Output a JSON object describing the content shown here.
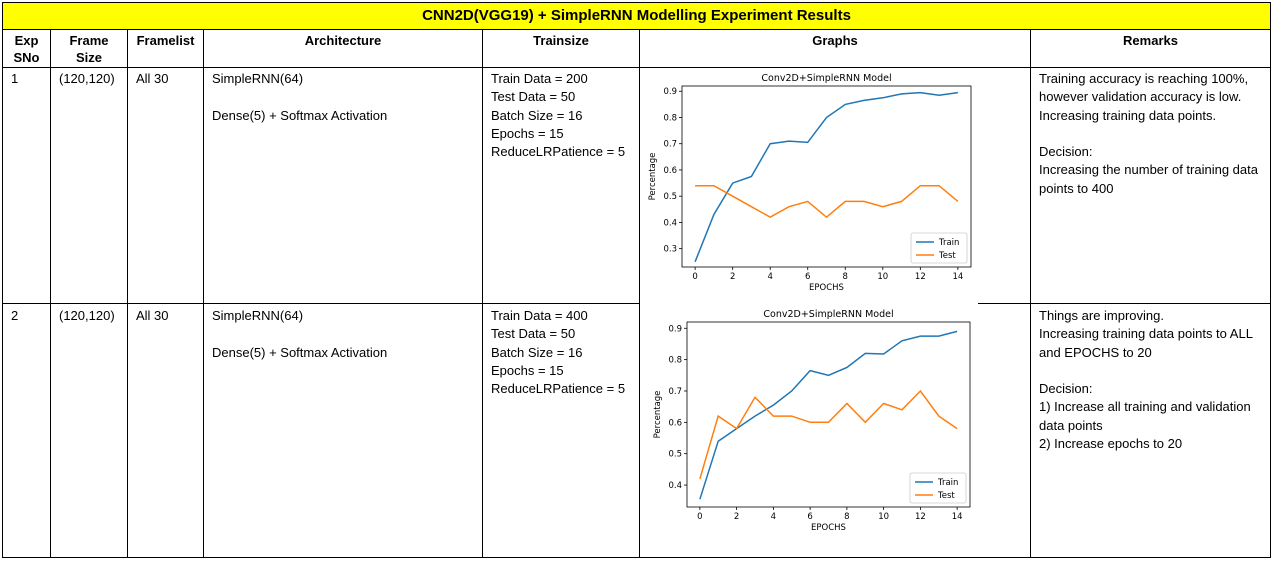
{
  "title": "CNN2D(VGG19) + SimpleRNN Modelling Experiment Results",
  "headers": {
    "exp": "Exp\nSNo",
    "frame": "Frame\nSize",
    "framelist": "Framelist",
    "arch": "Architecture",
    "trainsize": "Trainsize",
    "graphs": "Graphs",
    "remarks": "Remarks"
  },
  "rows": [
    {
      "exp": "1",
      "frame": "(120,120)",
      "framelist": "All 30",
      "arch": "SimpleRNN(64)\n\nDense(5) + Softmax Activation",
      "trainsize": "Train Data = 200\nTest Data = 50\nBatch Size = 16\nEpochs = 15\nReduceLRPatience = 5",
      "remarks": "Training accuracy is reaching 100%, however validation accuracy is low. Increasing training data points.\n\nDecision:\nIncreasing the number of training data points to 400"
    },
    {
      "exp": "2",
      "frame": "(120,120)",
      "framelist": "All 30",
      "arch": "SimpleRNN(64)\n\nDense(5) + Softmax Activation",
      "trainsize": "Train Data = 400\nTest Data = 50\nBatch Size = 16\nEpochs = 15\nReduceLRPatience = 5",
      "remarks": "Things are improving.\nIncreasing training data points to ALL and EPOCHS to 20\n\nDecision:\n1) Increase all training and validation data points\n2) Increase epochs to 20"
    }
  ],
  "chart_data": [
    {
      "type": "line",
      "title": "Conv2D+SimpleRNN Model",
      "xlabel": "EPOCHS",
      "ylabel": "Percentage",
      "x": [
        0,
        1,
        2,
        3,
        4,
        5,
        6,
        7,
        8,
        9,
        10,
        11,
        12,
        13,
        14
      ],
      "xticks": [
        0,
        2,
        4,
        6,
        8,
        10,
        12,
        14
      ],
      "yticks": [
        0.3,
        0.4,
        0.5,
        0.6,
        0.7,
        0.8,
        0.9
      ],
      "ylim": [
        0.23,
        0.92
      ],
      "xlim": [
        -0.7,
        14.7
      ],
      "legend_position": "lower-right",
      "series": [
        {
          "name": "Train",
          "color": "#1f77b4",
          "values": [
            0.25,
            0.43,
            0.55,
            0.575,
            0.7,
            0.71,
            0.705,
            0.8,
            0.85,
            0.865,
            0.875,
            0.89,
            0.895,
            0.885,
            0.895
          ]
        },
        {
          "name": "Test",
          "color": "#ff7f0e",
          "values": [
            0.54,
            0.54,
            0.5,
            0.46,
            0.42,
            0.46,
            0.48,
            0.42,
            0.48,
            0.48,
            0.46,
            0.48,
            0.54,
            0.54,
            0.48
          ]
        }
      ]
    },
    {
      "type": "line",
      "title": "Conv2D+SimpleRNN Model",
      "xlabel": "EPOCHS",
      "ylabel": "Percentage",
      "x": [
        0,
        1,
        2,
        3,
        4,
        5,
        6,
        7,
        8,
        9,
        10,
        11,
        12,
        13,
        14
      ],
      "xticks": [
        0,
        2,
        4,
        6,
        8,
        10,
        12,
        14
      ],
      "yticks": [
        0.4,
        0.5,
        0.6,
        0.7,
        0.8,
        0.9
      ],
      "ylim": [
        0.33,
        0.92
      ],
      "xlim": [
        -0.7,
        14.7
      ],
      "legend_position": "lower-right",
      "series": [
        {
          "name": "Train",
          "color": "#1f77b4",
          "values": [
            0.355,
            0.54,
            0.58,
            0.62,
            0.655,
            0.7,
            0.765,
            0.75,
            0.775,
            0.82,
            0.818,
            0.86,
            0.875,
            0.875,
            0.89
          ]
        },
        {
          "name": "Test",
          "color": "#ff7f0e",
          "values": [
            0.42,
            0.62,
            0.58,
            0.68,
            0.62,
            0.62,
            0.6,
            0.6,
            0.66,
            0.6,
            0.66,
            0.64,
            0.7,
            0.62,
            0.58
          ]
        }
      ]
    }
  ]
}
